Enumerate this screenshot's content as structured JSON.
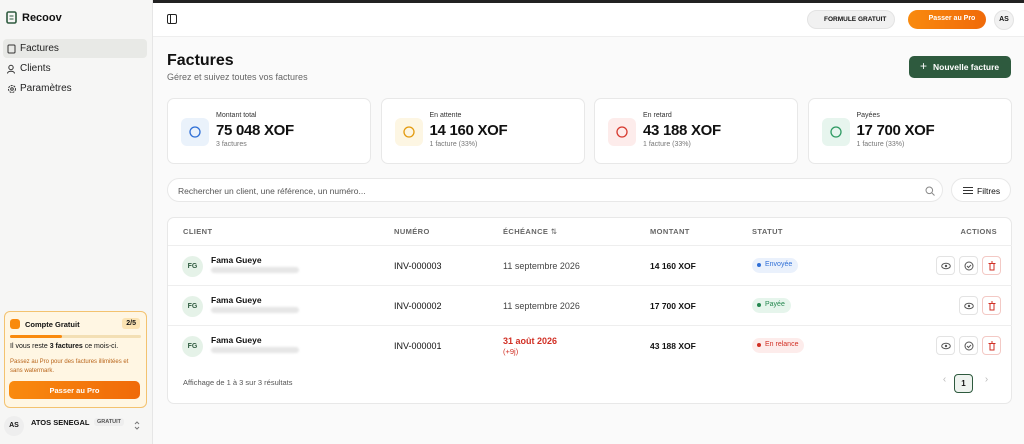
{
  "sidebar": {
    "brand": "Recoov",
    "nav": [
      "Factures",
      "Clients",
      "Paramètres"
    ],
    "promo": {
      "title": "Compte Gratuit",
      "count": "2/5",
      "remaining": [
        "Il vous reste ",
        "3 factures",
        " ce mois-ci."
      ],
      "text": "Passez au Pro pour des factures illimitées et sans watermark.",
      "button": "Passer au Pro"
    },
    "user": {
      "initials": "AS",
      "name": "ATOS SENEGAL",
      "plan": "GRATUIT"
    }
  },
  "topbar": {
    "plan": "FORMULE GRATUIT",
    "upgrade": "Passer au Pro",
    "initials": "AS"
  },
  "header": {
    "title": "Factures",
    "subtitle": "Gérez et suivez toutes vos factures",
    "button": "Nouvelle facture"
  },
  "stats": [
    {
      "label": "Montant total",
      "value": "75 048 XOF",
      "note": "3 factures"
    },
    {
      "label": "En attente",
      "value": "14 160 XOF",
      "note": "1 facture (33%)"
    },
    {
      "label": "En retard",
      "value": "43 188 XOF",
      "note": "1 facture (33%)"
    },
    {
      "label": "Payées",
      "value": "17 700 XOF",
      "note": "1 facture (33%)"
    }
  ],
  "search": {
    "placeholder": "Rechercher un client, une référence, un numéro...",
    "filters": "Filtres"
  },
  "table": {
    "headers": [
      "CLIENT",
      "NUMÉRO",
      "ÉCHÉANCE",
      "MONTANT",
      "STATUT",
      "ACTIONS"
    ],
    "rows": [
      {
        "initials": "FG",
        "client": "Fama Gueye",
        "number": "INV-000003",
        "due": "11 septembre 2026",
        "amount": "14 160 XOF",
        "status": "Envoyée"
      },
      {
        "initials": "FG",
        "client": "Fama Gueye",
        "number": "INV-000002",
        "due": "11 septembre 2026",
        "amount": "17 700 XOF",
        "status": "Payée"
      },
      {
        "initials": "FG",
        "client": "Fama Gueye",
        "number": "INV-000001",
        "due": "31 août 2026",
        "overdue": "(+9j)",
        "amount": "43 188 XOF",
        "status": "En relance"
      }
    ],
    "footer": "Affichage de 1 à 3 sur 3 résultats",
    "page": "1"
  }
}
